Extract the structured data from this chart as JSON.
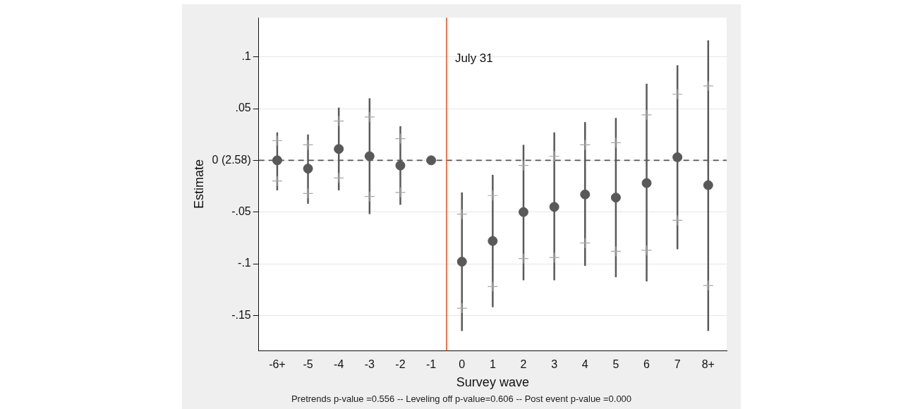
{
  "chart_data": {
    "type": "scatter",
    "xlabel": "Survey wave",
    "ylabel": "Estimate",
    "x": [
      -6,
      -5,
      -4,
      -3,
      -2,
      -1,
      0,
      1,
      2,
      3,
      4,
      5,
      6,
      7,
      8
    ],
    "xlim": [
      -6.6,
      8.6
    ],
    "xticks": [
      {
        "value": -6,
        "label": "-6+"
      },
      -5,
      -4,
      -3,
      -2,
      -1,
      0,
      1,
      2,
      3,
      4,
      5,
      6,
      7,
      {
        "value": 8,
        "label": "8+"
      }
    ],
    "ylim": [
      -0.184,
      0.138
    ],
    "yticks": [
      {
        "value": -0.15,
        "label": "-.15"
      },
      {
        "value": -0.1,
        "label": "-.1"
      },
      {
        "value": -0.05,
        "label": "-.05"
      },
      {
        "value": 0,
        "label": "0 (2.58)"
      },
      {
        "value": 0.05,
        "label": ".05"
      },
      {
        "value": 0.1,
        "label": ".1"
      }
    ],
    "marker": "circle",
    "series": [
      {
        "color": "#595959",
        "values": [
          0.0,
          -0.008,
          0.011,
          0.004,
          -0.005,
          0.0,
          -0.098,
          -0.078,
          -0.05,
          -0.045,
          -0.033,
          -0.036,
          -0.022,
          0.003,
          -0.024
        ],
        "errors": [
          [
            -0.029,
            0.027
          ],
          [
            -0.042,
            0.025
          ],
          [
            -0.029,
            0.051
          ],
          [
            -0.052,
            0.06
          ],
          [
            -0.043,
            0.033
          ],
          null,
          [
            -0.165,
            -0.031
          ],
          [
            -0.142,
            -0.014
          ],
          [
            -0.116,
            0.015
          ],
          [
            -0.116,
            0.027
          ],
          [
            -0.102,
            0.037
          ],
          [
            -0.113,
            0.041
          ],
          [
            -0.117,
            0.074
          ],
          [
            -0.086,
            0.092
          ],
          [
            -0.165,
            0.116
          ]
        ]
      },
      {
        "color": "#a6a6a6",
        "marker": "cross",
        "values": [
          -0.02,
          -0.032,
          -0.017,
          -0.035,
          -0.031,
          null,
          -0.143,
          -0.122,
          -0.095,
          -0.094,
          -0.08,
          -0.088,
          -0.087,
          -0.058,
          -0.121
        ]
      },
      {
        "color": "#a6a6a6",
        "marker": "cross",
        "values": [
          0.019,
          0.015,
          0.038,
          0.042,
          0.021,
          null,
          -0.052,
          -0.034,
          -0.005,
          0.004,
          0.015,
          0.017,
          0.044,
          0.064,
          0.072
        ]
      }
    ],
    "ref_lines": [
      {
        "axis": "y",
        "value": 0,
        "color": "#555555",
        "line_style": "dashed"
      },
      {
        "axis": "x",
        "value": -0.5,
        "label": "July 31",
        "color": "#f0582a",
        "line_style": "solid"
      }
    ],
    "grid": "y",
    "annotations": [
      "Pretrends p-value =0.556 -- Leveling off p-value=0.606 -- Post event p-value =0.000"
    ]
  }
}
